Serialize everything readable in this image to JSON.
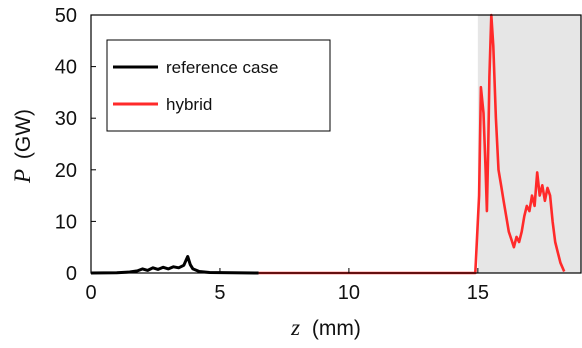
{
  "chart_data": {
    "type": "line",
    "xlabel": {
      "var": "z",
      "unit": "(mm)"
    },
    "ylabel": {
      "var": "P",
      "unit": "(GW)"
    },
    "xlim": [
      0,
      19
    ],
    "ylim": [
      0,
      50
    ],
    "xticks": [
      0,
      5,
      10,
      15
    ],
    "yticks": [
      0,
      10,
      20,
      30,
      40,
      50
    ],
    "grid": false,
    "legend": {
      "placement": "top-left"
    },
    "shaded_region": {
      "x_start": 15,
      "x_end": 19,
      "color": "#e6e6e6"
    },
    "series": [
      {
        "name": "reference case",
        "color": "#000000",
        "points": [
          [
            0,
            0
          ],
          [
            1.0,
            0.05
          ],
          [
            1.5,
            0.2
          ],
          [
            1.8,
            0.4
          ],
          [
            2.0,
            0.8
          ],
          [
            2.2,
            0.5
          ],
          [
            2.4,
            1.0
          ],
          [
            2.6,
            0.7
          ],
          [
            2.8,
            1.1
          ],
          [
            3.0,
            0.8
          ],
          [
            3.2,
            1.2
          ],
          [
            3.4,
            1.0
          ],
          [
            3.6,
            1.5
          ],
          [
            3.75,
            3.2
          ],
          [
            3.85,
            1.6
          ],
          [
            3.95,
            0.8
          ],
          [
            4.2,
            0.3
          ],
          [
            4.6,
            0.1
          ],
          [
            5.5,
            0.05
          ],
          [
            6.5,
            0
          ]
        ]
      },
      {
        "name": "hybrid",
        "color": "#ff2a2a",
        "points": [
          [
            6.5,
            0
          ],
          [
            14.9,
            0
          ],
          [
            15.05,
            15
          ],
          [
            15.12,
            36
          ],
          [
            15.22,
            31
          ],
          [
            15.3,
            20
          ],
          [
            15.35,
            12
          ],
          [
            15.4,
            24
          ],
          [
            15.45,
            38
          ],
          [
            15.52,
            50
          ],
          [
            15.6,
            44
          ],
          [
            15.7,
            30
          ],
          [
            15.8,
            20
          ],
          [
            15.9,
            17
          ],
          [
            16.0,
            14
          ],
          [
            16.1,
            11
          ],
          [
            16.2,
            8
          ],
          [
            16.3,
            6.5
          ],
          [
            16.4,
            5
          ],
          [
            16.5,
            7
          ],
          [
            16.6,
            6
          ],
          [
            16.7,
            8
          ],
          [
            16.8,
            11
          ],
          [
            16.9,
            13
          ],
          [
            17.0,
            12
          ],
          [
            17.1,
            15
          ],
          [
            17.2,
            13
          ],
          [
            17.3,
            19.5
          ],
          [
            17.4,
            15
          ],
          [
            17.5,
            17
          ],
          [
            17.6,
            14
          ],
          [
            17.7,
            16.5
          ],
          [
            17.8,
            15
          ],
          [
            17.9,
            10
          ],
          [
            18.0,
            6
          ],
          [
            18.1,
            4
          ],
          [
            18.2,
            2
          ],
          [
            18.35,
            0.3
          ]
        ]
      }
    ]
  }
}
